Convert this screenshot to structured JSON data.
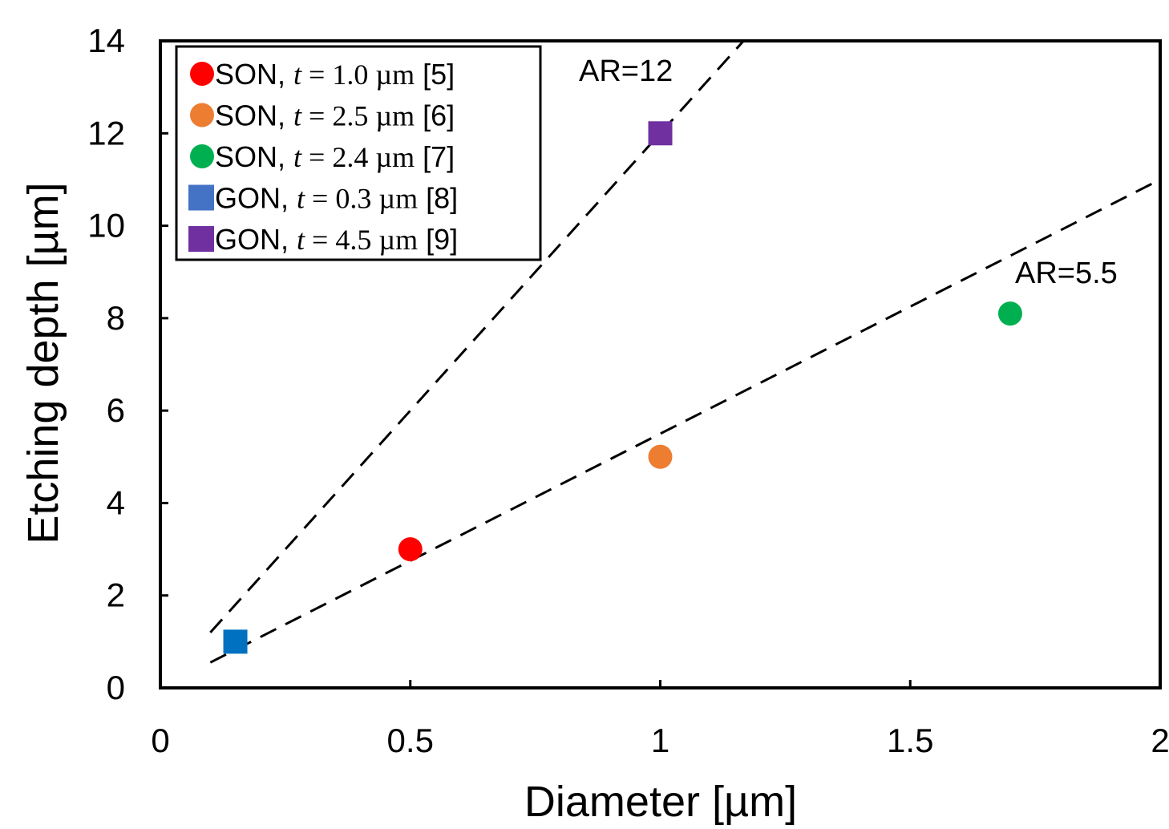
{
  "chart_data": {
    "type": "scatter",
    "xlabel": "Diameter [µm]",
    "ylabel": "Etching depth [µm]",
    "xlim": [
      0,
      2
    ],
    "ylim": [
      0,
      14
    ],
    "x_ticks": [
      "0",
      "0.5",
      "1",
      "1.5",
      "2"
    ],
    "y_ticks": [
      "0",
      "2",
      "4",
      "6",
      "8",
      "10",
      "12",
      "14"
    ],
    "grid": false,
    "legend_position": "top-left",
    "series": [
      {
        "name": "SON, t = 1.0 µm [5]",
        "prefix": "SON, ",
        "var": "t",
        "math": " = 1.0 µm",
        "ref": " [5]",
        "marker": "circle",
        "color": "#ff0000",
        "points": [
          {
            "x": 0.5,
            "y": 3.0
          }
        ]
      },
      {
        "name": "SON, t = 2.5 µm [6]",
        "prefix": "SON, ",
        "var": "t",
        "math": " = 2.5 µm",
        "ref": " [6]",
        "marker": "circle",
        "color": "#ed7d31",
        "points": [
          {
            "x": 1.0,
            "y": 5.0
          }
        ]
      },
      {
        "name": "SON, t = 2.4 µm [7]",
        "prefix": "SON, ",
        "var": "t",
        "math": " = 2.4 µm",
        "ref": " [7]",
        "marker": "circle",
        "color": "#00b050",
        "points": [
          {
            "x": 1.7,
            "y": 8.1
          }
        ]
      },
      {
        "name": "GON, t = 0.3 µm [8]",
        "prefix": "GON, ",
        "var": "t",
        "math": " = 0.3 µm",
        "ref": " [8]",
        "marker": "square",
        "color": "#0070c0",
        "legend_color": "#4472c4",
        "points": [
          {
            "x": 0.15,
            "y": 1.0
          }
        ]
      },
      {
        "name": "GON, t = 4.5 µm [9]",
        "prefix": "GON, ",
        "var": "t",
        "math": " = 4.5 µm",
        "ref": " [9]",
        "marker": "square",
        "color": "#7030a0",
        "points": [
          {
            "x": 1.0,
            "y": 12.0
          }
        ]
      }
    ],
    "reference_lines": [
      {
        "label": "AR=12",
        "slope": 12,
        "x_range": [
          0.1,
          1.167
        ],
        "style": "dashed",
        "color": "#000000"
      },
      {
        "label": "AR=5.5",
        "slope": 5.5,
        "x_range": [
          0.1,
          2.0
        ],
        "style": "dashed",
        "color": "#000000"
      }
    ]
  }
}
